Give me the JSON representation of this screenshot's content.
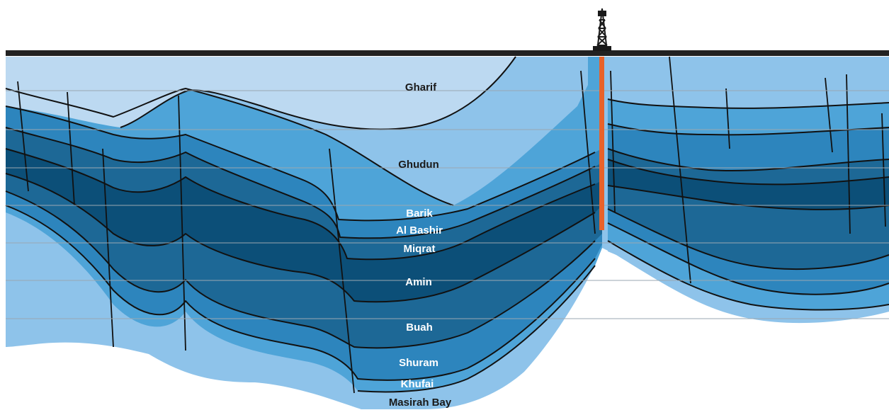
{
  "formations": [
    {
      "name": "Gharif",
      "text_color": "#1a1a1a"
    },
    {
      "name": "Ghudun",
      "text_color": "#1a1a1a"
    },
    {
      "name": "Barik",
      "text_color": "#ffffff"
    },
    {
      "name": "Al Bashir",
      "text_color": "#ffffff"
    },
    {
      "name": "Miqrat",
      "text_color": "#ffffff"
    },
    {
      "name": "Amin",
      "text_color": "#ffffff"
    },
    {
      "name": "Buah",
      "text_color": "#ffffff"
    },
    {
      "name": "Shuram",
      "text_color": "#ffffff"
    },
    {
      "name": "Khufai",
      "text_color": "#ffffff"
    },
    {
      "name": "Masirah Bay",
      "text_color": "#1a1a1a"
    }
  ],
  "colors": {
    "surface_line": "#222222",
    "wellbore": "#e8622a",
    "derrick": "#1a1a1a",
    "top_layer": "#bcd9f1",
    "shallow_blue": "#8ec3ea",
    "mid_blue": "#4ea4d8",
    "medium_blue": "#2d85bd",
    "deep_blue": "#1d6896",
    "darkest_blue": "#0c4f78",
    "horizon_line": "#111111",
    "grid_line": "#9aa7b1"
  },
  "icons": {
    "derrick": "oil-derrick-icon"
  }
}
